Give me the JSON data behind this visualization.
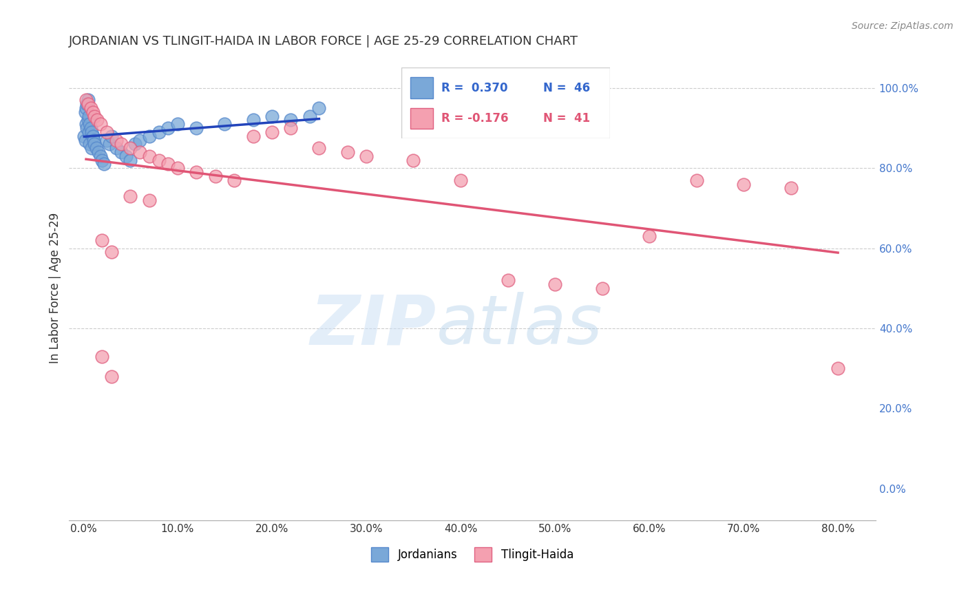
{
  "title": "JORDANIAN VS TLINGIT-HAIDA IN LABOR FORCE | AGE 25-29 CORRELATION CHART",
  "source": "Source: ZipAtlas.com",
  "ylabel_label": "In Labor Force | Age 25-29",
  "jordanian_color": "#7aa8d8",
  "tlingit_color": "#f4a0b0",
  "jordanian_edge": "#5588cc",
  "tlingit_edge": "#e06080",
  "trendline_blue": "#2244bb",
  "trendline_pink": "#e05575",
  "jordanian_x": [
    0.1,
    0.2,
    0.3,
    0.4,
    0.5,
    0.6,
    0.7,
    0.8,
    0.9,
    1.0,
    0.2,
    0.3,
    0.4,
    0.5,
    0.6,
    0.7,
    0.8,
    0.9,
    1.0,
    1.1,
    1.2,
    1.4,
    1.6,
    1.8,
    2.0,
    2.2,
    2.5,
    2.8,
    3.0,
    3.5,
    4.0,
    4.5,
    5.0,
    5.5,
    6.0,
    7.0,
    8.0,
    9.0,
    10.0,
    12.0,
    15.0,
    18.0,
    20.0,
    22.0,
    24.0,
    25.0
  ],
  "jordanian_y": [
    88,
    87,
    91,
    90,
    92,
    89,
    86,
    93,
    85,
    88,
    94,
    95,
    96,
    97,
    93,
    91,
    90,
    89,
    88,
    87,
    86,
    85,
    84,
    83,
    82,
    81,
    87,
    86,
    88,
    85,
    84,
    83,
    82,
    86,
    87,
    88,
    89,
    90,
    91,
    90,
    91,
    92,
    93,
    92,
    93,
    95
  ],
  "tlingit_x": [
    0.3,
    0.5,
    0.8,
    1.0,
    1.2,
    1.5,
    1.8,
    2.0,
    2.5,
    3.0,
    3.5,
    4.0,
    5.0,
    6.0,
    7.0,
    8.0,
    9.0,
    10.0,
    12.0,
    14.0,
    16.0,
    18.0,
    20.0,
    22.0,
    25.0,
    28.0,
    30.0,
    35.0,
    40.0,
    45.0,
    50.0,
    55.0,
    60.0,
    65.0,
    70.0,
    75.0,
    80.0,
    2.0,
    3.0,
    5.0,
    7.0
  ],
  "tlingit_y": [
    97,
    96,
    95,
    94,
    93,
    92,
    91,
    90,
    89,
    88,
    87,
    86,
    85,
    84,
    83,
    82,
    81,
    80,
    79,
    78,
    77,
    88,
    89,
    90,
    85,
    84,
    83,
    82,
    77,
    52,
    51,
    50,
    63,
    77,
    76,
    75,
    30,
    62,
    59,
    73,
    72
  ]
}
